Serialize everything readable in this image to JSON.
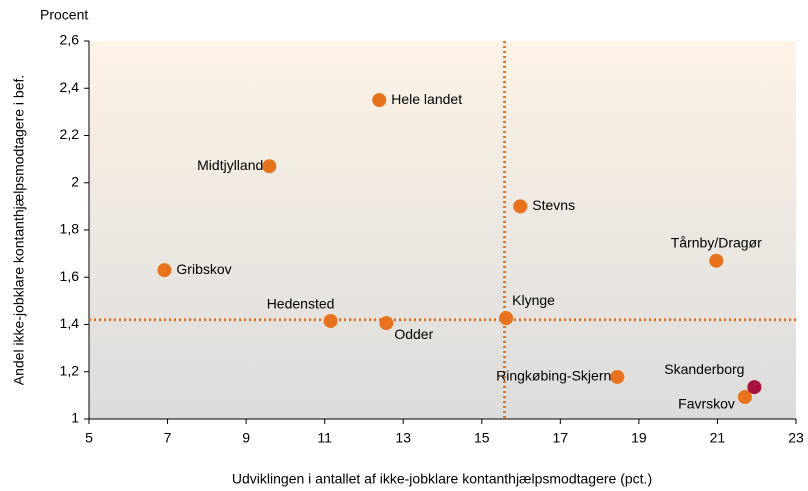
{
  "chart_data": {
    "type": "scatter",
    "y_unit_label": "Procent",
    "ylabel": "Andel ikke-jobklare kontanthjælpsmodtagere i bef.",
    "xlabel": "Udviklingen i antallet af ikke-jobklare kontanthjælpsmodtagere (pct.)",
    "xlim": [
      5,
      23
    ],
    "xticks": [
      5,
      7,
      9,
      11,
      13,
      15,
      17,
      19,
      21,
      23
    ],
    "ylim": [
      1,
      2.6
    ],
    "yticks": [
      1,
      {
        "value": 1.2,
        "label": "1,2"
      },
      {
        "value": 1.4,
        "label": "1,4"
      },
      {
        "value": 1.6,
        "label": "1,6"
      },
      {
        "value": 1.8,
        "label": "1,8"
      },
      2,
      {
        "value": 2.2,
        "label": "2,2"
      },
      {
        "value": 2.4,
        "label": "2,4"
      },
      {
        "value": 2.6,
        "label": "2,6"
      }
    ],
    "labels": [
      "Hele landet",
      "Midtjylland",
      "Stevns",
      "Tårnby/Dragør",
      "Gribskov",
      "Hedensted",
      "Odder",
      "Klynge",
      "Ringkøbing-Skjern",
      "Favrskov",
      "Skanderborg"
    ],
    "x": [
      12.39,
      9.59,
      15.98,
      20.97,
      6.92,
      11.15,
      12.57,
      15.62,
      18.45,
      21.7,
      21.94
    ],
    "values": [
      2.35,
      2.07,
      1.9,
      1.67,
      1.63,
      1.415,
      1.406,
      1.427,
      1.178,
      1.093,
      1.135
    ],
    "colors": [
      "#e8731e",
      "#e8731e",
      "#e8731e",
      "#e8731e",
      "#e8731e",
      "#e8731e",
      "#e8731e",
      "#e8731e",
      "#e8731e",
      "#e8731e",
      "#a8113c"
    ],
    "reference_lines": {
      "x": 15.58,
      "y": 1.42,
      "color": "#e8731e"
    }
  }
}
